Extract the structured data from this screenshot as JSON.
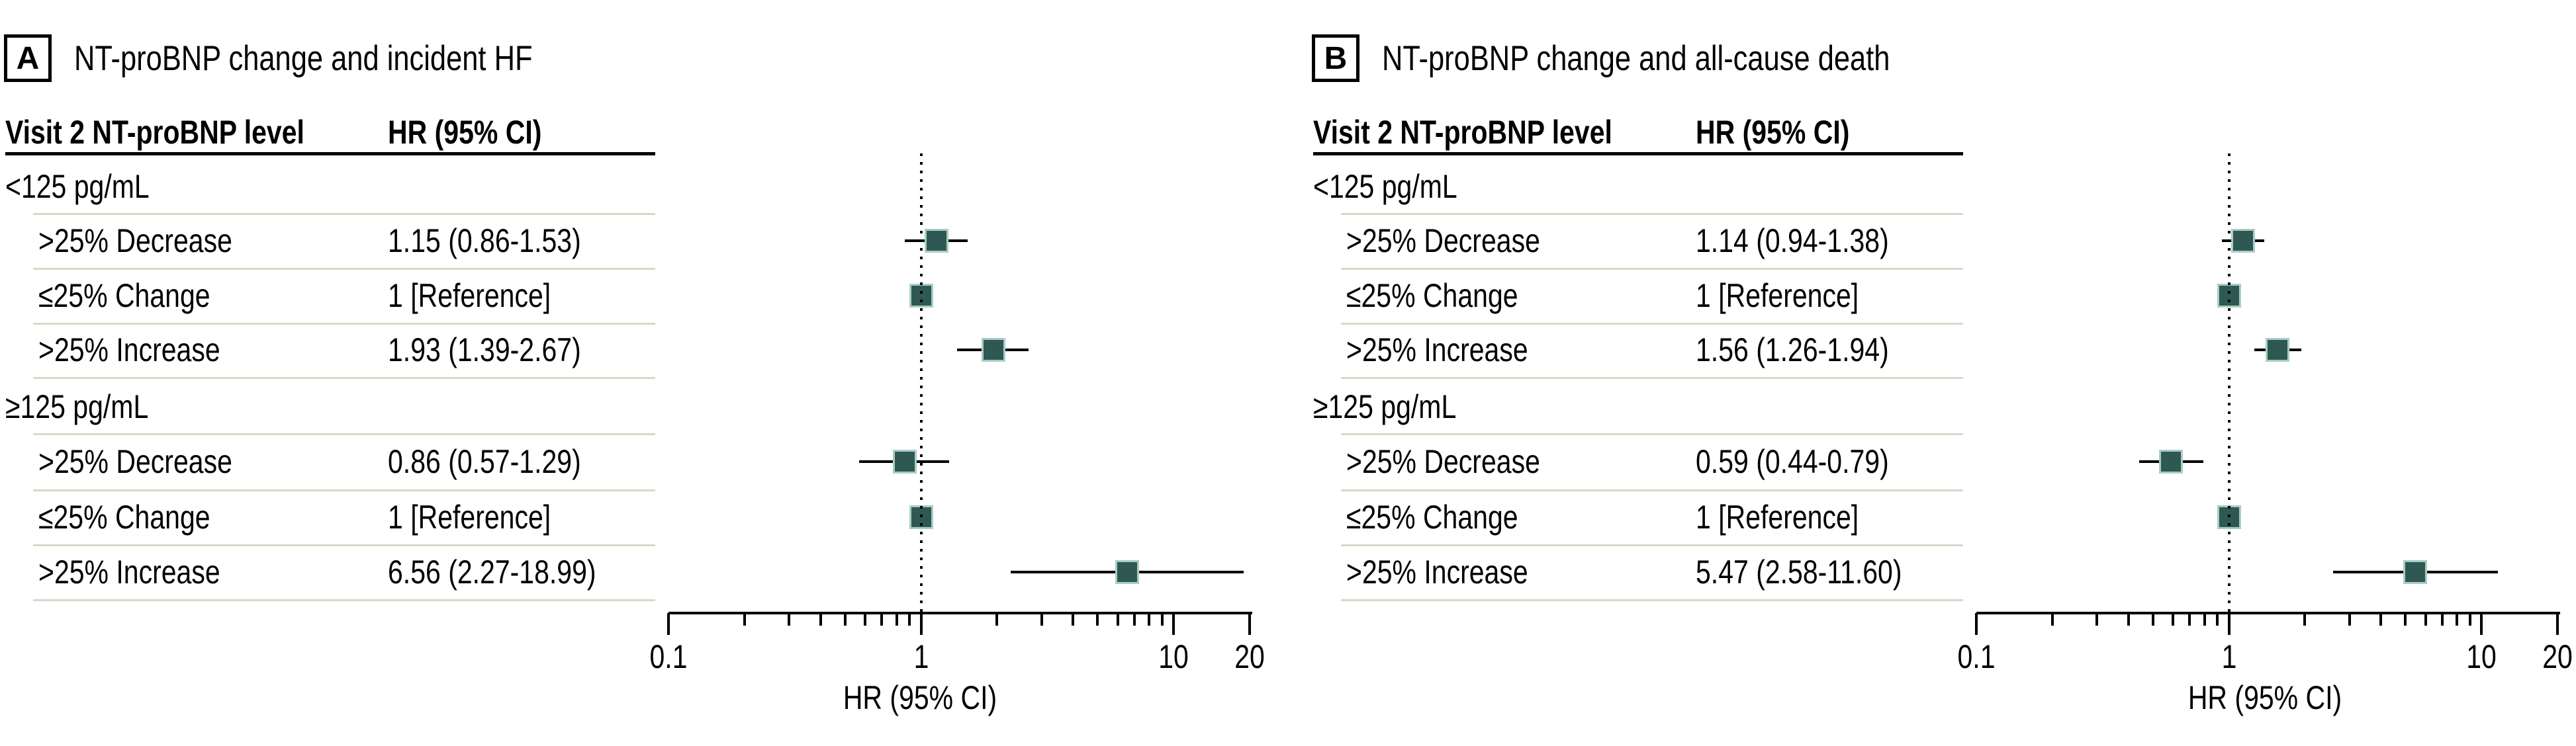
{
  "figure": {
    "colors": {
      "marker_fill": "#2f5853",
      "marker_edge": "#a9cdc6",
      "separator": "#d8d8ca",
      "text": "#000000",
      "background": "#ffffff"
    }
  },
  "chart_data": {
    "type": "forest",
    "scale": "log",
    "panels": [
      {
        "label": "A",
        "title": "NT-proBNP change and incident HF",
        "table": {
          "col1_header": "Visit 2 NT-proBNP level",
          "col2_header": "HR (95% CI)",
          "rows": [
            {
              "type": "group",
              "label": "<125 pg/mL"
            },
            {
              "type": "data",
              "label": ">25% Decrease",
              "value_text": "1.15 (0.86-1.53)",
              "hr": 1.15,
              "lo": 0.86,
              "hi": 1.53
            },
            {
              "type": "data",
              "label": "≤25% Change",
              "value_text": "1 [Reference]",
              "hr": 1,
              "reference": true
            },
            {
              "type": "data",
              "label": ">25% Increase",
              "value_text": "1.93 (1.39-2.67)",
              "hr": 1.93,
              "lo": 1.39,
              "hi": 2.67
            },
            {
              "type": "group",
              "label": "≥125 pg/mL"
            },
            {
              "type": "data",
              "label": ">25% Decrease",
              "value_text": "0.86 (0.57-1.29)",
              "hr": 0.86,
              "lo": 0.57,
              "hi": 1.29
            },
            {
              "type": "data",
              "label": "≤25% Change",
              "value_text": "1 [Reference]",
              "hr": 1,
              "reference": true
            },
            {
              "type": "data",
              "label": ">25% Increase",
              "value_text": "6.56 (2.27-18.99)",
              "hr": 6.56,
              "lo": 2.27,
              "hi": 18.99
            }
          ]
        },
        "axis": {
          "label": "HR (95% CI)",
          "min": 0.1,
          "max": 20,
          "scale": "log",
          "reference_line": 1,
          "tick_values": [
            0.1,
            1,
            10,
            20
          ],
          "tick_labels": [
            "0.1",
            "1",
            "10",
            "20"
          ]
        }
      },
      {
        "label": "B",
        "title": "NT-proBNP change and all-cause death",
        "table": {
          "col1_header": "Visit 2 NT-proBNP level",
          "col2_header": "HR (95% CI)",
          "rows": [
            {
              "type": "group",
              "label": "<125 pg/mL"
            },
            {
              "type": "data",
              "label": ">25% Decrease",
              "value_text": "1.14 (0.94-1.38)",
              "hr": 1.14,
              "lo": 0.94,
              "hi": 1.38
            },
            {
              "type": "data",
              "label": "≤25% Change",
              "value_text": "1 [Reference]",
              "hr": 1,
              "reference": true
            },
            {
              "type": "data",
              "label": ">25% Increase",
              "value_text": "1.56 (1.26-1.94)",
              "hr": 1.56,
              "lo": 1.26,
              "hi": 1.94
            },
            {
              "type": "group",
              "label": "≥125 pg/mL"
            },
            {
              "type": "data",
              "label": ">25% Decrease",
              "value_text": "0.59 (0.44-0.79)",
              "hr": 0.59,
              "lo": 0.44,
              "hi": 0.79
            },
            {
              "type": "data",
              "label": "≤25% Change",
              "value_text": "1 [Reference]",
              "hr": 1,
              "reference": true
            },
            {
              "type": "data",
              "label": ">25% Increase",
              "value_text": "5.47 (2.58-11.60)",
              "hr": 5.47,
              "lo": 2.58,
              "hi": 11.6
            }
          ]
        },
        "axis": {
          "label": "HR (95% CI)",
          "min": 0.1,
          "max": 20,
          "scale": "log",
          "reference_line": 1,
          "tick_values": [
            0.1,
            1,
            10,
            20
          ],
          "tick_labels": [
            "0.1",
            "1",
            "10",
            "20"
          ]
        }
      }
    ]
  }
}
